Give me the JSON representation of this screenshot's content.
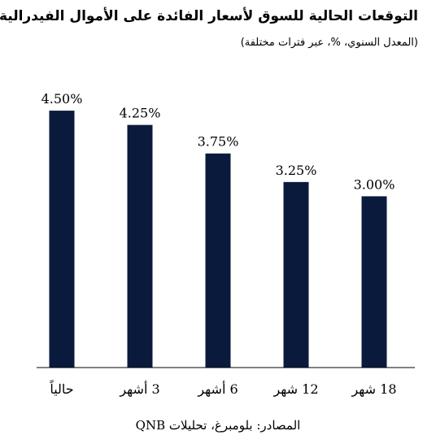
{
  "title": "التوقعات الحالية للسوق لأسعار الفائدة على الأموال الفيدرالية",
  "subtitle": "(المعدل السنوي، %، عبر فترات مختلفة)",
  "source": "المصادر: بلومبرغ، تحليلات QNB",
  "colors": {
    "bar": "#0a1a3c",
    "axis": "#000000"
  },
  "chart_data": {
    "type": "bar",
    "title": "التوقعات الحالية للسوق لأسعار الفائدة على الأموال الفيدرالية",
    "subtitle": "(المعدل السنوي، %، عبر فترات مختلفة)",
    "categories": [
      "حالياً",
      "3 أشهر",
      "6 أشهر",
      "12 شهر",
      "18 شهر"
    ],
    "values": [
      4.5,
      4.25,
      3.75,
      3.25,
      3.0
    ],
    "data_labels": [
      "4.50%",
      "4.25%",
      "3.75%",
      "3.25%",
      "3.00%"
    ],
    "ylim": [
      0,
      4.9
    ],
    "y_axis_shown": false,
    "grid": false,
    "legend": "none"
  }
}
